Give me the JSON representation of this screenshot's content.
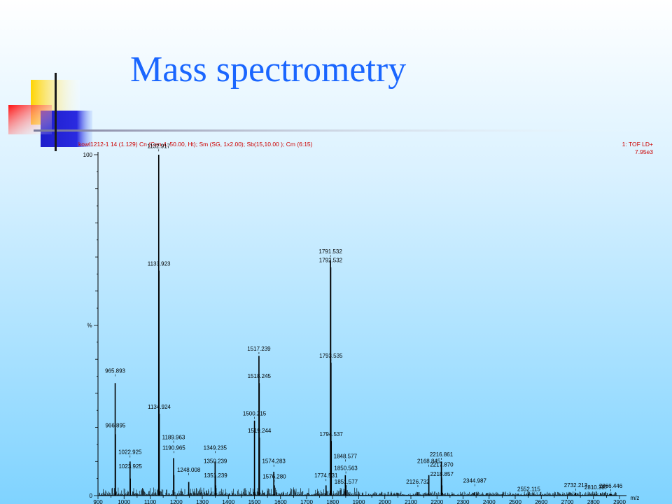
{
  "slide": {
    "title": "Mass spectrometry",
    "colors": {
      "title": "#1a66ff",
      "header_text": "#cc0000",
      "trace": "#000000"
    }
  },
  "chart_data": {
    "type": "line",
    "header_left": "kowl1212-1  14 (1.129) Cn (Cen,4, 50.00, Ht); Sm (SG, 1x2.00); Sb(15,10.00 ); Cm (6:15)",
    "header_right_1": "1: TOF LD+",
    "header_right_2": "7.95e3",
    "ylabel": "%",
    "xlabel": "m/z",
    "xlim": [
      900,
      2900
    ],
    "ylim": [
      0,
      100
    ],
    "x_ticks": [
      900,
      1000,
      1100,
      1200,
      1300,
      1400,
      1500,
      1600,
      1700,
      1800,
      1900,
      2000,
      2100,
      2200,
      2300,
      2400,
      2500,
      2600,
      2700,
      2800,
      2900
    ],
    "y_ticks": [
      0,
      100
    ],
    "peaks": [
      {
        "mz": 965.893,
        "intensity": 33
      },
      {
        "mz": 966.895,
        "intensity": 18
      },
      {
        "mz": 1022.925,
        "intensity": 10
      },
      {
        "mz": 1023.925,
        "intensity": 5
      },
      {
        "mz": 1132.917,
        "intensity": 100
      },
      {
        "mz": 1133.923,
        "intensity": 66
      },
      {
        "mz": 1134.924,
        "intensity": 24
      },
      {
        "mz": 1189.963,
        "intensity": 11
      },
      {
        "mz": 1190.965,
        "intensity": 6
      },
      {
        "mz": 1248.008,
        "intensity": 4
      },
      {
        "mz": 1349.235,
        "intensity": 10
      },
      {
        "mz": 1350.239,
        "intensity": 6
      },
      {
        "mz": 1351.239,
        "intensity": 3
      },
      {
        "mz": 1500.215,
        "intensity": 22
      },
      {
        "mz": 1517.239,
        "intensity": 41
      },
      {
        "mz": 1518.245,
        "intensity": 33
      },
      {
        "mz": 1519.244,
        "intensity": 17
      },
      {
        "mz": 1574.283,
        "intensity": 7
      },
      {
        "mz": 1576.28,
        "intensity": 3
      },
      {
        "mz": 1774.531,
        "intensity": 3
      },
      {
        "mz": 1791.532,
        "intensity": 69
      },
      {
        "mz": 1792.532,
        "intensity": 67
      },
      {
        "mz": 1793.535,
        "intensity": 39
      },
      {
        "mz": 1794.537,
        "intensity": 16
      },
      {
        "mz": 1848.577,
        "intensity": 6
      },
      {
        "mz": 1850.563,
        "intensity": 3
      },
      {
        "mz": 1851.577,
        "intensity": 1
      },
      {
        "mz": 2126.732,
        "intensity": 1
      },
      {
        "mz": 2168.845,
        "intensity": 6
      },
      {
        "mz": 2216.861,
        "intensity": 10
      },
      {
        "mz": 2217.87,
        "intensity": 5
      },
      {
        "mz": 2218.857,
        "intensity": 3
      },
      {
        "mz": 2344.987,
        "intensity": 1
      },
      {
        "mz": 2552.115,
        "intensity": 0.5
      },
      {
        "mz": 2732.213,
        "intensity": 0.8
      },
      {
        "mz": 2810.387,
        "intensity": 0.5
      },
      {
        "mz": 2866.446,
        "intensity": 0.5
      }
    ],
    "labels": [
      {
        "text": "965.893",
        "mz": 965.893,
        "ly": 36
      },
      {
        "text": "966.895",
        "mz": 966.895,
        "ly": 20
      },
      {
        "text": "1022.925",
        "mz": 1022.925,
        "ly": 12.2
      },
      {
        "text": "1023.925",
        "mz": 1023.925,
        "ly": 8
      },
      {
        "text": "1132.917",
        "mz": 1132.917,
        "ly": 102
      },
      {
        "text": "1133.923",
        "mz": 1133.923,
        "ly": 67.5
      },
      {
        "text": "1134.924",
        "mz": 1134.924,
        "ly": 25.5
      },
      {
        "text": "1189.963",
        "mz": 1189.963,
        "ly": 16.5
      },
      {
        "text": "1190.965",
        "mz": 1190.965,
        "ly": 13.5
      },
      {
        "text": "1248.008",
        "mz": 1248.008,
        "ly": 7
      },
      {
        "text": "1349.235",
        "mz": 1349.235,
        "ly": 13.5
      },
      {
        "text": "1350.239",
        "mz": 1350.239,
        "ly": 9.5
      },
      {
        "text": "1351.239",
        "mz": 1351.239,
        "ly": 5.3
      },
      {
        "text": "1500.215",
        "mz": 1500.215,
        "ly": 23.5
      },
      {
        "text": "1517.239",
        "mz": 1517.239,
        "ly": 42.5
      },
      {
        "text": "1518.245",
        "mz": 1518.245,
        "ly": 34.5
      },
      {
        "text": "1519.244",
        "mz": 1519.244,
        "ly": 18.5
      },
      {
        "text": "1574.283",
        "mz": 1574.283,
        "ly": 9.5
      },
      {
        "text": "1576.280",
        "mz": 1576.28,
        "ly": 5
      },
      {
        "text": "1774.531",
        "mz": 1774.531,
        "ly": 5.3
      },
      {
        "text": "1791.532",
        "mz": 1791.532,
        "ly": 71
      },
      {
        "text": "1792.532",
        "mz": 1792.532,
        "ly": 68.5
      },
      {
        "text": "1793.535",
        "mz": 1793.535,
        "ly": 40.5
      },
      {
        "text": "1794.537",
        "mz": 1794.537,
        "ly": 17.5
      },
      {
        "text": "1848.577",
        "mz": 1848.577,
        "ly": 11
      },
      {
        "text": "1850.563",
        "mz": 1850.563,
        "ly": 7.5
      },
      {
        "text": "1851.577",
        "mz": 1851.577,
        "ly": 3.5
      },
      {
        "text": "2126.732",
        "mz": 2126.732,
        "ly": 3.5
      },
      {
        "text": "2168.845",
        "mz": 2168.845,
        "ly": 9.5
      },
      {
        "text": "2216.861",
        "mz": 2216.861,
        "ly": 11.5
      },
      {
        "text": "2217.870",
        "mz": 2217.87,
        "ly": 8.5
      },
      {
        "text": "2218.857",
        "mz": 2218.857,
        "ly": 5.8
      },
      {
        "text": "2344.987",
        "mz": 2344.987,
        "ly": 3.8
      },
      {
        "text": "2552.115",
        "mz": 2552.115,
        "ly": 1.3
      },
      {
        "text": "2732.213",
        "mz": 2732.213,
        "ly": 2.5
      },
      {
        "text": "2810.387",
        "mz": 2810.387,
        "ly": 1.8
      },
      {
        "text": "2866.446",
        "mz": 2866.446,
        "ly": 2.3
      }
    ]
  }
}
